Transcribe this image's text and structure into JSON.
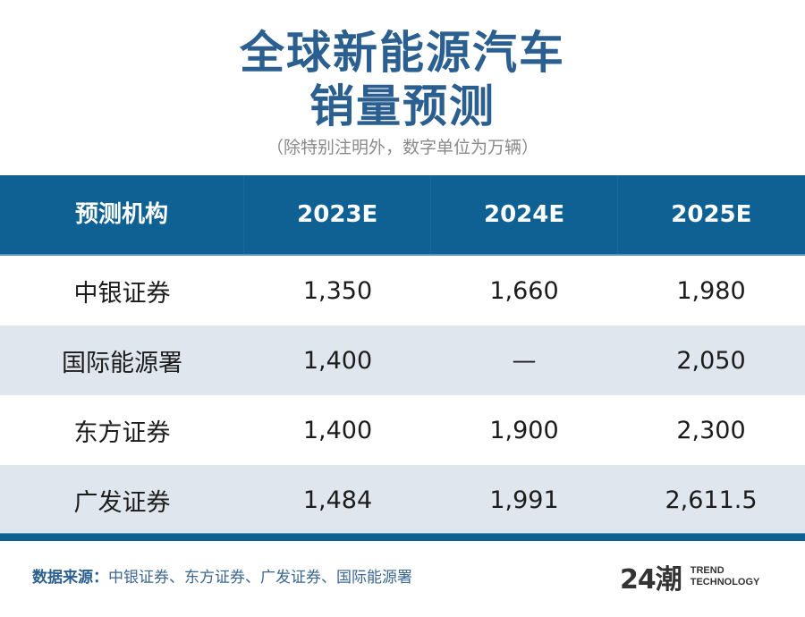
{
  "header": {
    "title_line1": "全球新能源汽车",
    "title_line2": "销量预测",
    "subtitle": "（除特别注明外，数字单位为万辆）"
  },
  "table": {
    "columns": [
      "预测机构",
      "2023E",
      "2024E",
      "2025E"
    ],
    "rows": [
      [
        "中银证券",
        "1,350",
        "1,660",
        "1,980"
      ],
      [
        "国际能源署",
        "1,400",
        "—",
        "2,050"
      ],
      [
        "东方证券",
        "1,400",
        "1,900",
        "2,300"
      ],
      [
        "广发证券",
        "1,484",
        "1,991",
        "2,611.5"
      ]
    ]
  },
  "footer": {
    "source_label": "数据来源：",
    "source_text": "中银证券、东方证券、广发证券、国际能源署",
    "logo_mark": "24潮",
    "logo_line1": "TREND",
    "logo_line2": "TECHNOLOGY"
  },
  "colors": {
    "title": "#2b5f8f",
    "header_bg": "#0f6193",
    "stripe": "#dfe6ee"
  },
  "chart_data": {
    "type": "table",
    "title": "全球新能源汽车销量预测",
    "subtitle": "（除特别注明外，数字单位为万辆）",
    "unit": "万辆",
    "columns": [
      "预测机构",
      "2023E",
      "2024E",
      "2025E"
    ],
    "categories": [
      "2023E",
      "2024E",
      "2025E"
    ],
    "series": [
      {
        "name": "中银证券",
        "values": [
          1350,
          1660,
          1980
        ]
      },
      {
        "name": "国际能源署",
        "values": [
          1400,
          null,
          2050
        ]
      },
      {
        "name": "东方证券",
        "values": [
          1400,
          1900,
          2300
        ]
      },
      {
        "name": "广发证券",
        "values": [
          1484,
          1991,
          2611.5
        ]
      }
    ],
    "source": "中银证券、东方证券、广发证券、国际能源署"
  }
}
